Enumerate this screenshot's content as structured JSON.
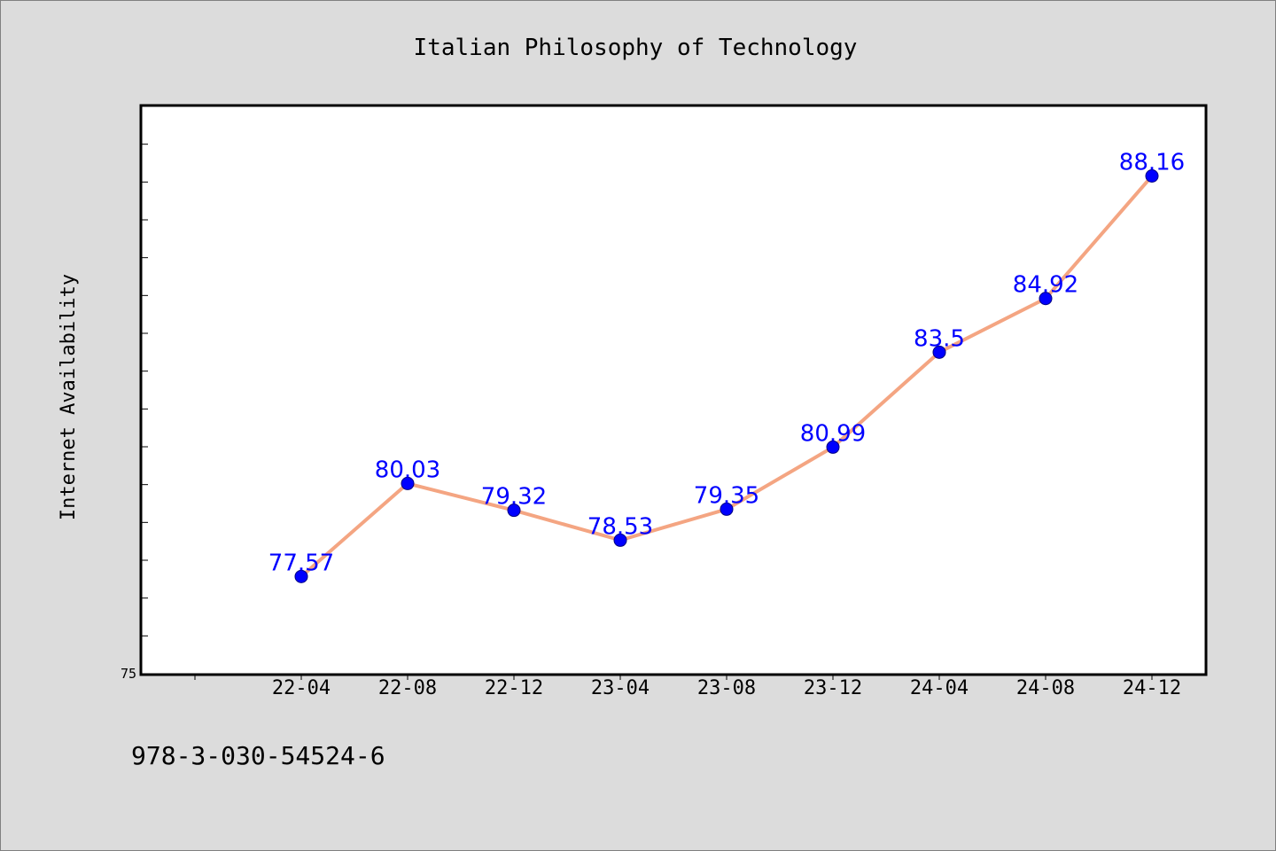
{
  "chart_data": {
    "type": "line",
    "title": "Italian Philosophy of Technology",
    "xlabel": "",
    "ylabel": "Internet Availability",
    "categories": [
      "22-04",
      "22-08",
      "22-12",
      "23-04",
      "23-08",
      "23-12",
      "24-04",
      "24-08",
      "24-12"
    ],
    "series": [
      {
        "values": [
          77.57,
          80.03,
          79.32,
          78.53,
          79.35,
          80.99,
          83.5,
          84.92,
          88.16
        ]
      }
    ],
    "value_labels": [
      "77.57",
      "80.03",
      "79.32",
      "78.53",
      "79.35",
      "80.99",
      "83.5",
      "84.92",
      "88.16"
    ],
    "ylim": [
      75,
      90
    ],
    "y_tick_labels": [
      "75"
    ],
    "grid": false,
    "legend": "none",
    "colors": {
      "line": "#f4a582",
      "marker": "#0000ff",
      "labels": "#0000ff",
      "background": "#dcdcdc",
      "plot_background": "#ffffff"
    }
  },
  "footer": {
    "isbn": "978-3-030-54524-6"
  }
}
